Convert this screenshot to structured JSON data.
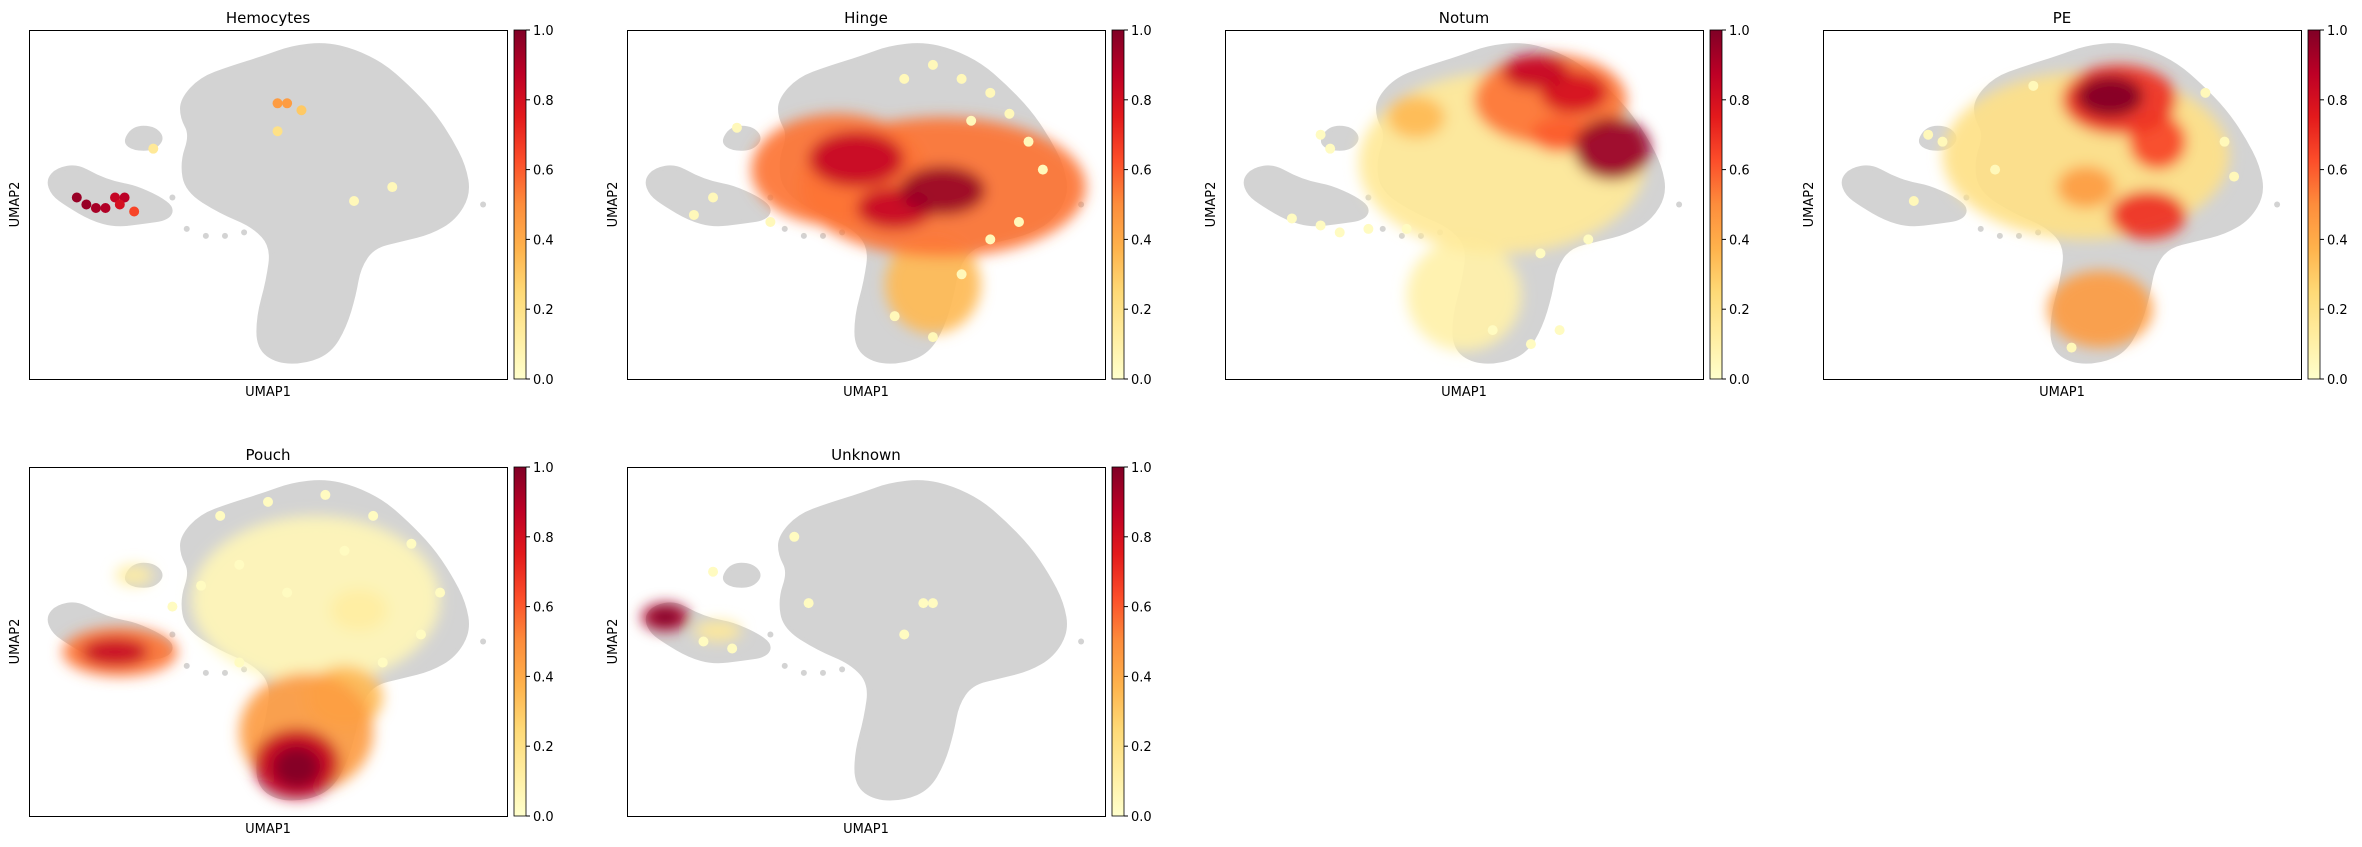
{
  "figure": {
    "colormap": [
      "#ffffcc",
      "#ffeda0",
      "#fed976",
      "#feb24c",
      "#fd8d3c",
      "#fc4e2a",
      "#e31a1c",
      "#bd0026",
      "#800026"
    ],
    "background_cell_color": "#d3d3d3"
  },
  "chart_data": [
    {
      "type": "scatter",
      "title": "Hemocytes",
      "xlabel": "UMAP1",
      "ylabel": "UMAP2",
      "colorbar": {
        "range": [
          0,
          1
        ],
        "ticks": [
          "0.0",
          "0.2",
          "0.4",
          "0.6",
          "0.8",
          "1.0"
        ]
      },
      "density_blobs": [],
      "highlight_points": [
        {
          "x": 0.1,
          "y": 0.52,
          "v": 0.95
        },
        {
          "x": 0.12,
          "y": 0.5,
          "v": 0.95
        },
        {
          "x": 0.14,
          "y": 0.49,
          "v": 0.92
        },
        {
          "x": 0.16,
          "y": 0.49,
          "v": 0.9
        },
        {
          "x": 0.18,
          "y": 0.52,
          "v": 0.85
        },
        {
          "x": 0.2,
          "y": 0.52,
          "v": 0.88
        },
        {
          "x": 0.19,
          "y": 0.5,
          "v": 0.8
        },
        {
          "x": 0.22,
          "y": 0.48,
          "v": 0.65
        },
        {
          "x": 0.52,
          "y": 0.79,
          "v": 0.45
        },
        {
          "x": 0.54,
          "y": 0.79,
          "v": 0.45
        },
        {
          "x": 0.57,
          "y": 0.77,
          "v": 0.3
        },
        {
          "x": 0.52,
          "y": 0.71,
          "v": 0.2
        },
        {
          "x": 0.26,
          "y": 0.66,
          "v": 0.15
        },
        {
          "x": 0.68,
          "y": 0.51,
          "v": 0.05
        },
        {
          "x": 0.76,
          "y": 0.55,
          "v": 0.05
        }
      ],
      "scatter_points": []
    },
    {
      "type": "scatter",
      "title": "Hinge",
      "xlabel": "UMAP1",
      "ylabel": "UMAP2",
      "colorbar": {
        "range": [
          0,
          1
        ],
        "ticks": [
          "0.0",
          "0.2",
          "0.4",
          "0.6",
          "0.8",
          "1.0"
        ]
      },
      "density_blobs": [
        {
          "x": 0.66,
          "y": 0.55,
          "rx": 0.3,
          "ry": 0.2,
          "v": 0.55
        },
        {
          "x": 0.44,
          "y": 0.6,
          "rx": 0.18,
          "ry": 0.16,
          "v": 0.55
        },
        {
          "x": 0.64,
          "y": 0.27,
          "rx": 0.1,
          "ry": 0.14,
          "v": 0.35
        },
        {
          "x": 0.48,
          "y": 0.63,
          "rx": 0.1,
          "ry": 0.08,
          "v": 0.85
        },
        {
          "x": 0.66,
          "y": 0.54,
          "rx": 0.09,
          "ry": 0.07,
          "v": 0.95
        },
        {
          "x": 0.56,
          "y": 0.49,
          "rx": 0.08,
          "ry": 0.06,
          "v": 0.85
        }
      ],
      "highlight_points": [],
      "scatter_points": [
        {
          "x": 0.64,
          "y": 0.9,
          "v": 0.05
        },
        {
          "x": 0.7,
          "y": 0.86,
          "v": 0.05
        },
        {
          "x": 0.76,
          "y": 0.82,
          "v": 0.05
        },
        {
          "x": 0.8,
          "y": 0.76,
          "v": 0.05
        },
        {
          "x": 0.84,
          "y": 0.68,
          "v": 0.05
        },
        {
          "x": 0.87,
          "y": 0.6,
          "v": 0.05
        },
        {
          "x": 0.72,
          "y": 0.74,
          "v": 0.05
        },
        {
          "x": 0.58,
          "y": 0.86,
          "v": 0.05
        },
        {
          "x": 0.23,
          "y": 0.72,
          "v": 0.05
        },
        {
          "x": 0.18,
          "y": 0.52,
          "v": 0.05
        },
        {
          "x": 0.14,
          "y": 0.47,
          "v": 0.05
        },
        {
          "x": 0.3,
          "y": 0.45,
          "v": 0.05
        },
        {
          "x": 0.56,
          "y": 0.18,
          "v": 0.05
        },
        {
          "x": 0.64,
          "y": 0.12,
          "v": 0.05
        },
        {
          "x": 0.7,
          "y": 0.3,
          "v": 0.05
        },
        {
          "x": 0.82,
          "y": 0.45,
          "v": 0.05
        },
        {
          "x": 0.76,
          "y": 0.4,
          "v": 0.05
        }
      ]
    },
    {
      "type": "scatter",
      "title": "Notum",
      "xlabel": "UMAP1",
      "ylabel": "UMAP2",
      "colorbar": {
        "range": [
          0,
          1
        ],
        "ticks": [
          "0.0",
          "0.2",
          "0.4",
          "0.6",
          "0.8",
          "1.0"
        ]
      },
      "density_blobs": [
        {
          "x": 0.58,
          "y": 0.62,
          "rx": 0.3,
          "ry": 0.26,
          "v": 0.15
        },
        {
          "x": 0.5,
          "y": 0.24,
          "rx": 0.12,
          "ry": 0.16,
          "v": 0.1
        },
        {
          "x": 0.68,
          "y": 0.8,
          "rx": 0.16,
          "ry": 0.13,
          "v": 0.55
        },
        {
          "x": 0.65,
          "y": 0.88,
          "rx": 0.07,
          "ry": 0.05,
          "v": 0.85
        },
        {
          "x": 0.73,
          "y": 0.82,
          "rx": 0.07,
          "ry": 0.06,
          "v": 0.8
        },
        {
          "x": 0.81,
          "y": 0.66,
          "rx": 0.08,
          "ry": 0.09,
          "v": 0.95
        },
        {
          "x": 0.7,
          "y": 0.7,
          "rx": 0.06,
          "ry": 0.05,
          "v": 0.6
        },
        {
          "x": 0.4,
          "y": 0.75,
          "rx": 0.06,
          "ry": 0.06,
          "v": 0.35
        }
      ],
      "highlight_points": [],
      "scatter_points": [
        {
          "x": 0.2,
          "y": 0.7,
          "v": 0.03
        },
        {
          "x": 0.22,
          "y": 0.66,
          "v": 0.03
        },
        {
          "x": 0.2,
          "y": 0.44,
          "v": 0.03
        },
        {
          "x": 0.24,
          "y": 0.42,
          "v": 0.03
        },
        {
          "x": 0.3,
          "y": 0.43,
          "v": 0.03
        },
        {
          "x": 0.38,
          "y": 0.43,
          "v": 0.03
        },
        {
          "x": 0.14,
          "y": 0.46,
          "v": 0.03
        },
        {
          "x": 0.56,
          "y": 0.14,
          "v": 0.03
        },
        {
          "x": 0.64,
          "y": 0.1,
          "v": 0.03
        },
        {
          "x": 0.7,
          "y": 0.14,
          "v": 0.03
        },
        {
          "x": 0.76,
          "y": 0.4,
          "v": 0.03
        },
        {
          "x": 0.66,
          "y": 0.36,
          "v": 0.03
        }
      ]
    },
    {
      "type": "scatter",
      "title": "PE",
      "xlabel": "UMAP1",
      "ylabel": "UMAP2",
      "colorbar": {
        "range": [
          0,
          1
        ],
        "ticks": [
          "0.0",
          "0.2",
          "0.4",
          "0.6",
          "0.8",
          "1.0"
        ]
      },
      "density_blobs": [
        {
          "x": 0.55,
          "y": 0.64,
          "rx": 0.3,
          "ry": 0.24,
          "v": 0.2
        },
        {
          "x": 0.62,
          "y": 0.8,
          "rx": 0.12,
          "ry": 0.1,
          "v": 0.7
        },
        {
          "x": 0.6,
          "y": 0.81,
          "rx": 0.07,
          "ry": 0.06,
          "v": 1.0
        },
        {
          "x": 0.7,
          "y": 0.68,
          "rx": 0.06,
          "ry": 0.08,
          "v": 0.65
        },
        {
          "x": 0.68,
          "y": 0.47,
          "rx": 0.08,
          "ry": 0.07,
          "v": 0.7
        },
        {
          "x": 0.58,
          "y": 0.2,
          "rx": 0.11,
          "ry": 0.11,
          "v": 0.45
        },
        {
          "x": 0.55,
          "y": 0.55,
          "rx": 0.06,
          "ry": 0.06,
          "v": 0.45
        }
      ],
      "highlight_points": [],
      "scatter_points": [
        {
          "x": 0.22,
          "y": 0.7,
          "v": 0.05
        },
        {
          "x": 0.25,
          "y": 0.68,
          "v": 0.05
        },
        {
          "x": 0.19,
          "y": 0.51,
          "v": 0.05
        },
        {
          "x": 0.36,
          "y": 0.6,
          "v": 0.05
        },
        {
          "x": 0.8,
          "y": 0.82,
          "v": 0.05
        },
        {
          "x": 0.84,
          "y": 0.68,
          "v": 0.05
        },
        {
          "x": 0.86,
          "y": 0.58,
          "v": 0.05
        },
        {
          "x": 0.44,
          "y": 0.84,
          "v": 0.05
        },
        {
          "x": 0.52,
          "y": 0.09,
          "v": 0.05
        }
      ]
    },
    {
      "type": "scatter",
      "title": "Pouch",
      "xlabel": "UMAP1",
      "ylabel": "UMAP2",
      "colorbar": {
        "range": [
          0,
          1
        ],
        "ticks": [
          "0.0",
          "0.2",
          "0.4",
          "0.6",
          "0.8",
          "1.0"
        ]
      },
      "density_blobs": [
        {
          "x": 0.6,
          "y": 0.62,
          "rx": 0.26,
          "ry": 0.24,
          "v": 0.06
        },
        {
          "x": 0.58,
          "y": 0.24,
          "rx": 0.14,
          "ry": 0.17,
          "v": 0.45
        },
        {
          "x": 0.66,
          "y": 0.34,
          "rx": 0.08,
          "ry": 0.09,
          "v": 0.35
        },
        {
          "x": 0.56,
          "y": 0.15,
          "rx": 0.09,
          "ry": 0.1,
          "v": 0.85
        },
        {
          "x": 0.56,
          "y": 0.14,
          "rx": 0.05,
          "ry": 0.06,
          "v": 1.0
        },
        {
          "x": 0.19,
          "y": 0.47,
          "rx": 0.12,
          "ry": 0.07,
          "v": 0.55
        },
        {
          "x": 0.18,
          "y": 0.47,
          "rx": 0.07,
          "ry": 0.04,
          "v": 0.85
        },
        {
          "x": 0.69,
          "y": 0.59,
          "rx": 0.06,
          "ry": 0.06,
          "v": 0.12
        },
        {
          "x": 0.22,
          "y": 0.69,
          "rx": 0.04,
          "ry": 0.03,
          "v": 0.12
        }
      ],
      "highlight_points": [],
      "scatter_points": [
        {
          "x": 0.4,
          "y": 0.86,
          "v": 0.03
        },
        {
          "x": 0.5,
          "y": 0.9,
          "v": 0.03
        },
        {
          "x": 0.62,
          "y": 0.92,
          "v": 0.03
        },
        {
          "x": 0.72,
          "y": 0.86,
          "v": 0.03
        },
        {
          "x": 0.8,
          "y": 0.78,
          "v": 0.03
        },
        {
          "x": 0.86,
          "y": 0.64,
          "v": 0.03
        },
        {
          "x": 0.44,
          "y": 0.72,
          "v": 0.03
        },
        {
          "x": 0.36,
          "y": 0.66,
          "v": 0.03
        },
        {
          "x": 0.44,
          "y": 0.44,
          "v": 0.03
        },
        {
          "x": 0.74,
          "y": 0.44,
          "v": 0.03
        },
        {
          "x": 0.82,
          "y": 0.52,
          "v": 0.03
        },
        {
          "x": 0.66,
          "y": 0.76,
          "v": 0.03
        },
        {
          "x": 0.54,
          "y": 0.64,
          "v": 0.03
        },
        {
          "x": 0.3,
          "y": 0.6,
          "v": 0.03
        }
      ]
    },
    {
      "type": "scatter",
      "title": "Unknown",
      "xlabel": "UMAP1",
      "ylabel": "UMAP2",
      "colorbar": {
        "range": [
          0,
          1
        ],
        "ticks": [
          "0.0",
          "0.2",
          "0.4",
          "0.6",
          "0.8",
          "1.0"
        ]
      },
      "density_blobs": [
        {
          "x": 0.08,
          "y": 0.57,
          "rx": 0.05,
          "ry": 0.04,
          "v": 0.9
        },
        {
          "x": 0.08,
          "y": 0.57,
          "rx": 0.03,
          "ry": 0.025,
          "v": 1.0
        },
        {
          "x": 0.19,
          "y": 0.53,
          "rx": 0.05,
          "ry": 0.03,
          "v": 0.15
        }
      ],
      "highlight_points": [],
      "scatter_points": [
        {
          "x": 0.38,
          "y": 0.61,
          "v": 0.03
        },
        {
          "x": 0.62,
          "y": 0.61,
          "v": 0.03
        },
        {
          "x": 0.64,
          "y": 0.61,
          "v": 0.03
        },
        {
          "x": 0.58,
          "y": 0.52,
          "v": 0.03
        },
        {
          "x": 0.18,
          "y": 0.7,
          "v": 0.03
        },
        {
          "x": 0.35,
          "y": 0.8,
          "v": 0.03
        },
        {
          "x": 0.16,
          "y": 0.5,
          "v": 0.03
        },
        {
          "x": 0.22,
          "y": 0.48,
          "v": 0.03
        }
      ]
    }
  ]
}
